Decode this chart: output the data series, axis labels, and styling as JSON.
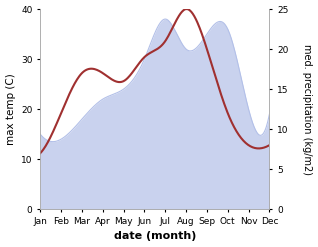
{
  "months": [
    "Jan",
    "Feb",
    "Mar",
    "Apr",
    "May",
    "Jun",
    "Jul",
    "Aug",
    "Sep",
    "Oct",
    "Nov",
    "Dec"
  ],
  "max_temp": [
    15,
    14,
    18,
    22,
    24,
    30,
    38,
    32,
    35,
    36,
    20,
    19
  ],
  "med_precip": [
    7,
    12,
    17,
    17,
    16,
    19,
    21,
    25,
    20,
    12,
    8,
    8
  ],
  "temp_fill_color": "#b3c0e8",
  "precip_line_color": "#a03030",
  "ylim_left": [
    0,
    40
  ],
  "ylim_right": [
    0,
    25
  ],
  "ylabel_left": "max temp (C)",
  "ylabel_right": "med. precipitation (kg/m2)",
  "xlabel": "date (month)",
  "figsize": [
    3.18,
    2.47
  ],
  "dpi": 100,
  "bg_color": "#ffffff",
  "right_yticks": [
    0,
    5,
    10,
    15,
    20,
    25
  ],
  "left_yticks": [
    0,
    10,
    20,
    30,
    40
  ]
}
